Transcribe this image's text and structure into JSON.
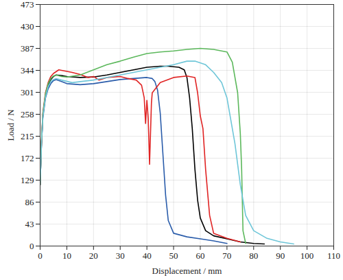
{
  "chart_data": {
    "type": "line",
    "x_label": "Displacement / mm",
    "y_label": "Load / N",
    "xlim": [
      0,
      110
    ],
    "xticks": [
      0,
      10,
      20,
      30,
      40,
      50,
      60,
      70,
      80,
      90,
      100,
      110
    ],
    "ylim": [
      0,
      473
    ],
    "yticks": [
      0,
      43,
      86,
      129,
      172,
      215,
      258,
      301,
      344,
      387,
      430,
      473
    ],
    "grid": true,
    "series": [
      {
        "color": "#2a5caa",
        "x": [
          0,
          0.5,
          1,
          2,
          3,
          4,
          5,
          6,
          8,
          10,
          15,
          20,
          25,
          30,
          35,
          40,
          42,
          43,
          44,
          45,
          46,
          47,
          48,
          50,
          55,
          60,
          65,
          70
        ],
        "values": [
          120,
          200,
          250,
          290,
          308,
          318,
          324,
          326,
          322,
          318,
          316,
          318,
          322,
          326,
          328,
          330,
          328,
          322,
          305,
          260,
          180,
          100,
          50,
          25,
          18,
          14,
          10,
          5
        ]
      },
      {
        "color": "#000000",
        "x": [
          0,
          0.5,
          1,
          2,
          3,
          4,
          5,
          6,
          8,
          10,
          15,
          20,
          25,
          30,
          35,
          40,
          45,
          48,
          52,
          54,
          55,
          56,
          57,
          58,
          59,
          60,
          62,
          65,
          70,
          75,
          80,
          84
        ],
        "values": [
          120,
          200,
          255,
          295,
          315,
          326,
          332,
          335,
          334,
          332,
          330,
          331,
          335,
          340,
          345,
          350,
          352,
          352,
          350,
          345,
          330,
          290,
          230,
          150,
          90,
          55,
          30,
          20,
          14,
          8,
          5,
          4
        ]
      },
      {
        "color": "#e02424",
        "x": [
          0,
          0.5,
          1,
          2,
          3,
          4,
          5,
          7,
          9,
          12,
          15,
          18,
          20,
          22,
          25,
          30,
          33,
          36,
          38,
          39,
          39.5,
          40,
          40.5,
          41,
          41.7,
          42,
          45,
          50,
          55,
          58,
          59,
          60,
          61,
          62,
          63.5,
          65,
          70,
          75
        ],
        "values": [
          120,
          205,
          260,
          300,
          320,
          332,
          338,
          345,
          343,
          340,
          336,
          330,
          332,
          325,
          330,
          332,
          328,
          325,
          315,
          290,
          240,
          285,
          250,
          160,
          280,
          300,
          320,
          330,
          333,
          330,
          300,
          255,
          230,
          150,
          60,
          25,
          15,
          8
        ]
      },
      {
        "color": "#5cb85c",
        "x": [
          0,
          0.5,
          1,
          2,
          3,
          4,
          5,
          6,
          8,
          10,
          15,
          20,
          25,
          30,
          35,
          40,
          45,
          50,
          55,
          60,
          65,
          70,
          72,
          74,
          75,
          75.5,
          76,
          77
        ],
        "values": [
          120,
          205,
          258,
          298,
          318,
          328,
          333,
          335,
          332,
          331,
          335,
          345,
          355,
          362,
          370,
          377,
          380,
          382,
          385,
          387,
          385,
          380,
          360,
          300,
          220,
          150,
          30,
          5
        ]
      },
      {
        "color": "#6ec6d8",
        "x": [
          0,
          0.5,
          1,
          2,
          3,
          4,
          5,
          6,
          8,
          12,
          20,
          30,
          40,
          50,
          55,
          58,
          62,
          65,
          68,
          70,
          73,
          75,
          77,
          80,
          85,
          90,
          95
        ],
        "values": [
          120,
          200,
          252,
          292,
          312,
          322,
          326,
          328,
          325,
          320,
          325,
          335,
          345,
          355,
          362,
          362,
          355,
          340,
          320,
          290,
          200,
          120,
          60,
          30,
          15,
          8,
          4
        ]
      }
    ]
  }
}
